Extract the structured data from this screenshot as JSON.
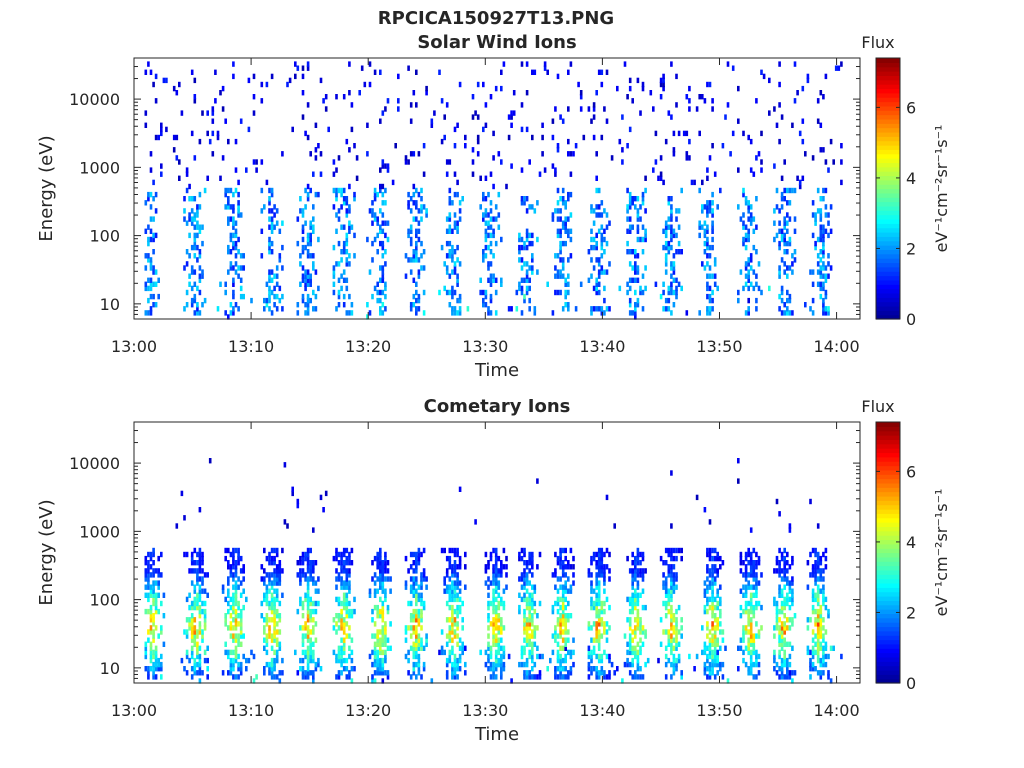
{
  "figure": {
    "title": "RPCICA150927T13.PNG"
  },
  "colors": {
    "axis": "#262626",
    "colormap": "jet",
    "colormap_stops": [
      "#00008f",
      "#0000ff",
      "#0080ff",
      "#00ffff",
      "#80ff80",
      "#ffff00",
      "#ff8000",
      "#ff0000",
      "#800000"
    ]
  },
  "chart_data": [
    {
      "type": "heatmap",
      "title": "Solar Wind Ions",
      "xlabel": "Time",
      "ylabel": "Energy (eV)",
      "xlim": [
        "13:00",
        "14:02"
      ],
      "xticks": [
        "13:00",
        "13:10",
        "13:20",
        "13:30",
        "13:40",
        "13:50",
        "14:00"
      ],
      "yscale": "log",
      "ylim": [
        6,
        40000
      ],
      "yticks": [
        {
          "value": 10,
          "label": "10"
        },
        {
          "value": 100,
          "label": "100"
        },
        {
          "value": 1000,
          "label": "1000"
        },
        {
          "value": 10000,
          "label": "10000"
        }
      ],
      "colorbar": {
        "title": "Flux",
        "label": "eV⁻¹cm⁻²sr⁻¹s⁻¹",
        "range": [
          0,
          7.4
        ],
        "ticks": [
          "0",
          "2",
          "4",
          "6"
        ]
      },
      "bursts_minutes": [
        1.2,
        5.0,
        8.5,
        11.7,
        14.7,
        17.8,
        20.8,
        24.0,
        27.1,
        30.3,
        33.4,
        36.6,
        39.6,
        42.7,
        45.8,
        49.0,
        52.4,
        55.5,
        58.6
      ],
      "burst_energy_range_eV": [
        10,
        500
      ],
      "burst_peak_flux": 2.6,
      "background": {
        "energy_range_eV": [
          500,
          35000
        ],
        "flux_range": [
          0.3,
          1.2
        ],
        "density": "sparse"
      }
    },
    {
      "type": "heatmap",
      "title": "Cometary Ions",
      "xlabel": "Time",
      "ylabel": "Energy (eV)",
      "xlim": [
        "13:00",
        "14:02"
      ],
      "xticks": [
        "13:00",
        "13:10",
        "13:20",
        "13:30",
        "13:40",
        "13:50",
        "14:00"
      ],
      "yscale": "log",
      "ylim": [
        6,
        40000
      ],
      "yticks": [
        {
          "value": 10,
          "label": "10"
        },
        {
          "value": 100,
          "label": "100"
        },
        {
          "value": 1000,
          "label": "1000"
        },
        {
          "value": 10000,
          "label": "10000"
        }
      ],
      "colorbar": {
        "title": "Flux",
        "label": "eV⁻¹cm⁻²sr⁻¹s⁻¹",
        "range": [
          0,
          7.4
        ],
        "ticks": [
          "0",
          "2",
          "4",
          "6"
        ]
      },
      "bursts_minutes": [
        1.5,
        5.2,
        8.5,
        11.7,
        14.8,
        17.8,
        21.0,
        24.0,
        27.2,
        30.8,
        33.6,
        36.5,
        39.6,
        42.8,
        45.8,
        49.3,
        52.6,
        55.4,
        58.3
      ],
      "burst_energy_range_eV": [
        10,
        600
      ],
      "burst_peak_energy_eV": 40,
      "burst_peak_flux": 5.6,
      "background": {
        "energy_range_eV": [
          1000,
          12000
        ],
        "flux_range": [
          0.3,
          1.0
        ],
        "density": "very sparse"
      }
    }
  ]
}
